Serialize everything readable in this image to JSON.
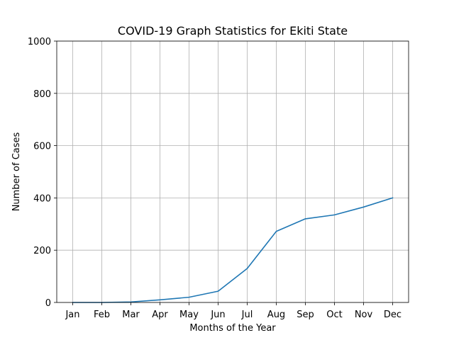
{
  "chart_data": {
    "type": "line",
    "title": "COVID-19 Graph Statistics for Ekiti State",
    "xlabel": "Months of the Year",
    "ylabel": "Number of Cases",
    "categories": [
      "Jan",
      "Feb",
      "Mar",
      "Apr",
      "May",
      "Jun",
      "Jul",
      "Aug",
      "Sep",
      "Oct",
      "Nov",
      "Dec"
    ],
    "series": [
      {
        "values": [
          0,
          0,
          2,
          10,
          20,
          43,
          130,
          272,
          320,
          335,
          365,
          400
        ],
        "color": "#1f77b4"
      }
    ],
    "ylim": [
      0,
      1000
    ],
    "yticks": [
      0,
      200,
      400,
      600,
      800,
      1000
    ],
    "grid": true,
    "legend": "none"
  }
}
